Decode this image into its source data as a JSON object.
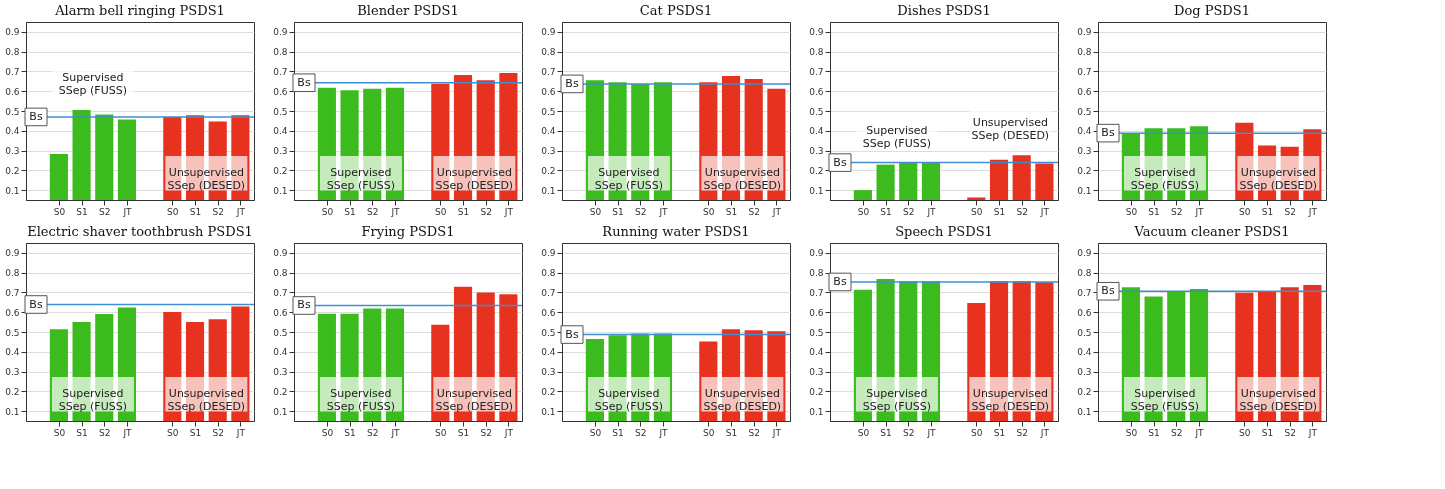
{
  "chart_data": [
    {
      "type": "bar",
      "title": "Alarm bell ringing PSDS1",
      "categories": [
        "S0",
        "S1",
        "S2",
        "JT",
        null,
        "S0",
        "S1",
        "S2",
        "JT"
      ],
      "series": [
        {
          "color": "#3cbb1e",
          "values": [
            0.283,
            0.505,
            0.482,
            0.457,
            null,
            null,
            null,
            null,
            null
          ]
        },
        {
          "color": "#e6321e",
          "values": [
            null,
            null,
            null,
            null,
            null,
            0.47,
            0.478,
            0.447,
            0.478
          ]
        }
      ],
      "ylim": [
        0.05,
        0.95
      ],
      "yticks": [
        0.1,
        0.2,
        0.3,
        0.4,
        0.5,
        0.6,
        0.7,
        0.8,
        0.9
      ],
      "grid": "y",
      "ref_lines": [
        {
          "axis": "y",
          "value": 0.47,
          "label": "Bs",
          "color": "#3d8fd1"
        }
      ],
      "annotations": [
        "Supervised\nSSep (FUSS)",
        "Unsupervised\nSSep (DESED)"
      ]
    },
    {
      "type": "bar",
      "title": "Blender PSDS1",
      "categories": [
        "S0",
        "S1",
        "S2",
        "JT",
        null,
        "S0",
        "S1",
        "S2",
        "JT"
      ],
      "series": [
        {
          "color": "#3cbb1e",
          "values": [
            0.618,
            0.605,
            0.613,
            0.618,
            null,
            null,
            null,
            null,
            null
          ]
        },
        {
          "color": "#e6321e",
          "values": [
            null,
            null,
            null,
            null,
            null,
            0.638,
            0.682,
            0.655,
            0.692
          ]
        }
      ],
      "ylim": [
        0.05,
        0.95
      ],
      "yticks": [
        0.1,
        0.2,
        0.3,
        0.4,
        0.5,
        0.6,
        0.7,
        0.8,
        0.9
      ],
      "grid": "y",
      "ref_lines": [
        {
          "axis": "y",
          "value": 0.643,
          "label": "Bs",
          "color": "#3d8fd1"
        }
      ],
      "annotations": [
        "Supervised\nSSep (FUSS)",
        "Unsupervised\nSSep (DESED)"
      ]
    },
    {
      "type": "bar",
      "title": "Cat PSDS1",
      "categories": [
        "S0",
        "S1",
        "S2",
        "JT",
        null,
        "S0",
        "S1",
        "S2",
        "JT"
      ],
      "series": [
        {
          "color": "#3cbb1e",
          "values": [
            0.655,
            0.645,
            0.637,
            0.645,
            null,
            null,
            null,
            null,
            null
          ]
        },
        {
          "color": "#e6321e",
          "values": [
            null,
            null,
            null,
            null,
            null,
            0.645,
            0.677,
            0.662,
            0.612
          ]
        }
      ],
      "ylim": [
        0.05,
        0.95
      ],
      "yticks": [
        0.1,
        0.2,
        0.3,
        0.4,
        0.5,
        0.6,
        0.7,
        0.8,
        0.9
      ],
      "grid": "y",
      "ref_lines": [
        {
          "axis": "y",
          "value": 0.637,
          "label": "Bs",
          "color": "#3d8fd1"
        }
      ],
      "annotations": [
        "Supervised\nSSep (FUSS)",
        "Unsupervised\nSSep (DESED)"
      ]
    },
    {
      "type": "bar",
      "title": "Dishes PSDS1",
      "categories": [
        "S0",
        "S1",
        "S2",
        "JT",
        null,
        "S0",
        "S1",
        "S2",
        "JT"
      ],
      "series": [
        {
          "color": "#3cbb1e",
          "values": [
            0.1,
            0.229,
            0.239,
            0.239,
            null,
            null,
            null,
            null,
            null
          ]
        },
        {
          "color": "#e6321e",
          "values": [
            null,
            null,
            null,
            null,
            null,
            0.063,
            0.254,
            0.276,
            0.234
          ]
        }
      ],
      "ylim": [
        0.05,
        0.95
      ],
      "yticks": [
        0.1,
        0.2,
        0.3,
        0.4,
        0.5,
        0.6,
        0.7,
        0.8,
        0.9
      ],
      "grid": "y",
      "ref_lines": [
        {
          "axis": "y",
          "value": 0.239,
          "label": "Bs",
          "color": "#3d8fd1"
        }
      ],
      "annotations": [
        "Supervised\nSSep (FUSS)",
        "Unsupervised\nSSep (DESED)"
      ]
    },
    {
      "type": "bar",
      "title": "Dog PSDS1",
      "categories": [
        "S0",
        "S1",
        "S2",
        "JT",
        null,
        "S0",
        "S1",
        "S2",
        "JT"
      ],
      "series": [
        {
          "color": "#3cbb1e",
          "values": [
            0.386,
            0.413,
            0.413,
            0.423,
            null,
            null,
            null,
            null,
            null
          ]
        },
        {
          "color": "#e6321e",
          "values": [
            null,
            null,
            null,
            null,
            null,
            0.44,
            0.326,
            0.319,
            0.408
          ]
        }
      ],
      "ylim": [
        0.05,
        0.95
      ],
      "yticks": [
        0.1,
        0.2,
        0.3,
        0.4,
        0.5,
        0.6,
        0.7,
        0.8,
        0.9
      ],
      "grid": "y",
      "ref_lines": [
        {
          "axis": "y",
          "value": 0.388,
          "label": "Bs",
          "color": "#3d8fd1"
        }
      ],
      "annotations": [
        "Supervised\nSSep (FUSS)",
        "Unsupervised\nSSep (DESED)"
      ]
    },
    {
      "type": "bar",
      "title": "Electric shaver toothbrush PSDS1",
      "categories": [
        "S0",
        "S1",
        "S2",
        "JT",
        null,
        "S0",
        "S1",
        "S2",
        "JT"
      ],
      "series": [
        {
          "color": "#3cbb1e",
          "values": [
            0.514,
            0.55,
            0.591,
            0.624,
            null,
            null,
            null,
            null,
            null
          ]
        },
        {
          "color": "#e6321e",
          "values": [
            null,
            null,
            null,
            null,
            null,
            0.601,
            0.55,
            0.564,
            0.629
          ]
        }
      ],
      "ylim": [
        0.05,
        0.95
      ],
      "yticks": [
        0.1,
        0.2,
        0.3,
        0.4,
        0.5,
        0.6,
        0.7,
        0.8,
        0.9
      ],
      "grid": "y",
      "ref_lines": [
        {
          "axis": "y",
          "value": 0.639,
          "label": "Bs",
          "color": "#3d8fd1"
        }
      ],
      "annotations": [
        "Supervised\nSSep (FUSS)",
        "Unsupervised\nSSep (DESED)"
      ]
    },
    {
      "type": "bar",
      "title": "Frying PSDS1",
      "categories": [
        "S0",
        "S1",
        "S2",
        "JT",
        null,
        "S0",
        "S1",
        "S2",
        "JT"
      ],
      "series": [
        {
          "color": "#3cbb1e",
          "values": [
            0.592,
            0.592,
            0.619,
            0.619,
            null,
            null,
            null,
            null,
            null
          ]
        },
        {
          "color": "#e6321e",
          "values": [
            null,
            null,
            null,
            null,
            null,
            0.537,
            0.729,
            0.7,
            0.691
          ]
        }
      ],
      "ylim": [
        0.05,
        0.95
      ],
      "yticks": [
        0.1,
        0.2,
        0.3,
        0.4,
        0.5,
        0.6,
        0.7,
        0.8,
        0.9
      ],
      "grid": "y",
      "ref_lines": [
        {
          "axis": "y",
          "value": 0.634,
          "label": "Bs",
          "color": "#3d8fd1"
        }
      ],
      "annotations": [
        "Supervised\nSSep (FUSS)",
        "Unsupervised\nSSep (DESED)"
      ]
    },
    {
      "type": "bar",
      "title": "Running water PSDS1",
      "categories": [
        "S0",
        "S1",
        "S2",
        "JT",
        null,
        "S0",
        "S1",
        "S2",
        "JT"
      ],
      "series": [
        {
          "color": "#3cbb1e",
          "values": [
            0.464,
            0.484,
            0.492,
            0.492,
            null,
            null,
            null,
            null,
            null
          ]
        },
        {
          "color": "#e6321e",
          "values": [
            null,
            null,
            null,
            null,
            null,
            0.452,
            0.514,
            0.509,
            0.504
          ]
        }
      ],
      "ylim": [
        0.05,
        0.95
      ],
      "yticks": [
        0.1,
        0.2,
        0.3,
        0.4,
        0.5,
        0.6,
        0.7,
        0.8,
        0.9
      ],
      "grid": "y",
      "ref_lines": [
        {
          "axis": "y",
          "value": 0.487,
          "label": "Bs",
          "color": "#3d8fd1"
        }
      ],
      "annotations": [
        "Supervised\nSSep (FUSS)",
        "Unsupervised\nSSep (DESED)"
      ]
    },
    {
      "type": "bar",
      "title": "Speech PSDS1",
      "categories": [
        "S0",
        "S1",
        "S2",
        "JT",
        null,
        "S0",
        "S1",
        "S2",
        "JT"
      ],
      "series": [
        {
          "color": "#3cbb1e",
          "values": [
            0.713,
            0.768,
            0.756,
            0.756,
            null,
            null,
            null,
            null,
            null
          ]
        },
        {
          "color": "#e6321e",
          "values": [
            null,
            null,
            null,
            null,
            null,
            0.646,
            0.756,
            0.756,
            0.751
          ]
        }
      ],
      "ylim": [
        0.05,
        0.95
      ],
      "yticks": [
        0.1,
        0.2,
        0.3,
        0.4,
        0.5,
        0.6,
        0.7,
        0.8,
        0.9
      ],
      "grid": "y",
      "ref_lines": [
        {
          "axis": "y",
          "value": 0.753,
          "label": "Bs",
          "color": "#3d8fd1"
        }
      ],
      "annotations": [
        "Supervised\nSSep (FUSS)",
        "Unsupervised\nSSep (DESED)"
      ]
    },
    {
      "type": "bar",
      "title": "Vacuum cleaner PSDS1",
      "categories": [
        "S0",
        "S1",
        "S2",
        "JT",
        null,
        "S0",
        "S1",
        "S2",
        "JT"
      ],
      "series": [
        {
          "color": "#3cbb1e",
          "values": [
            0.726,
            0.679,
            0.706,
            0.718,
            null,
            null,
            null,
            null,
            null
          ]
        },
        {
          "color": "#e6321e",
          "values": [
            null,
            null,
            null,
            null,
            null,
            0.699,
            0.706,
            0.726,
            0.738
          ]
        }
      ],
      "ylim": [
        0.05,
        0.95
      ],
      "yticks": [
        0.1,
        0.2,
        0.3,
        0.4,
        0.5,
        0.6,
        0.7,
        0.8,
        0.9
      ],
      "grid": "y",
      "ref_lines": [
        {
          "axis": "y",
          "value": 0.706,
          "label": "Bs",
          "color": "#3d8fd1"
        }
      ],
      "annotations": [
        "Supervised\nSSep (FUSS)",
        "Unsupervised\nSSep (DESED)"
      ]
    }
  ]
}
